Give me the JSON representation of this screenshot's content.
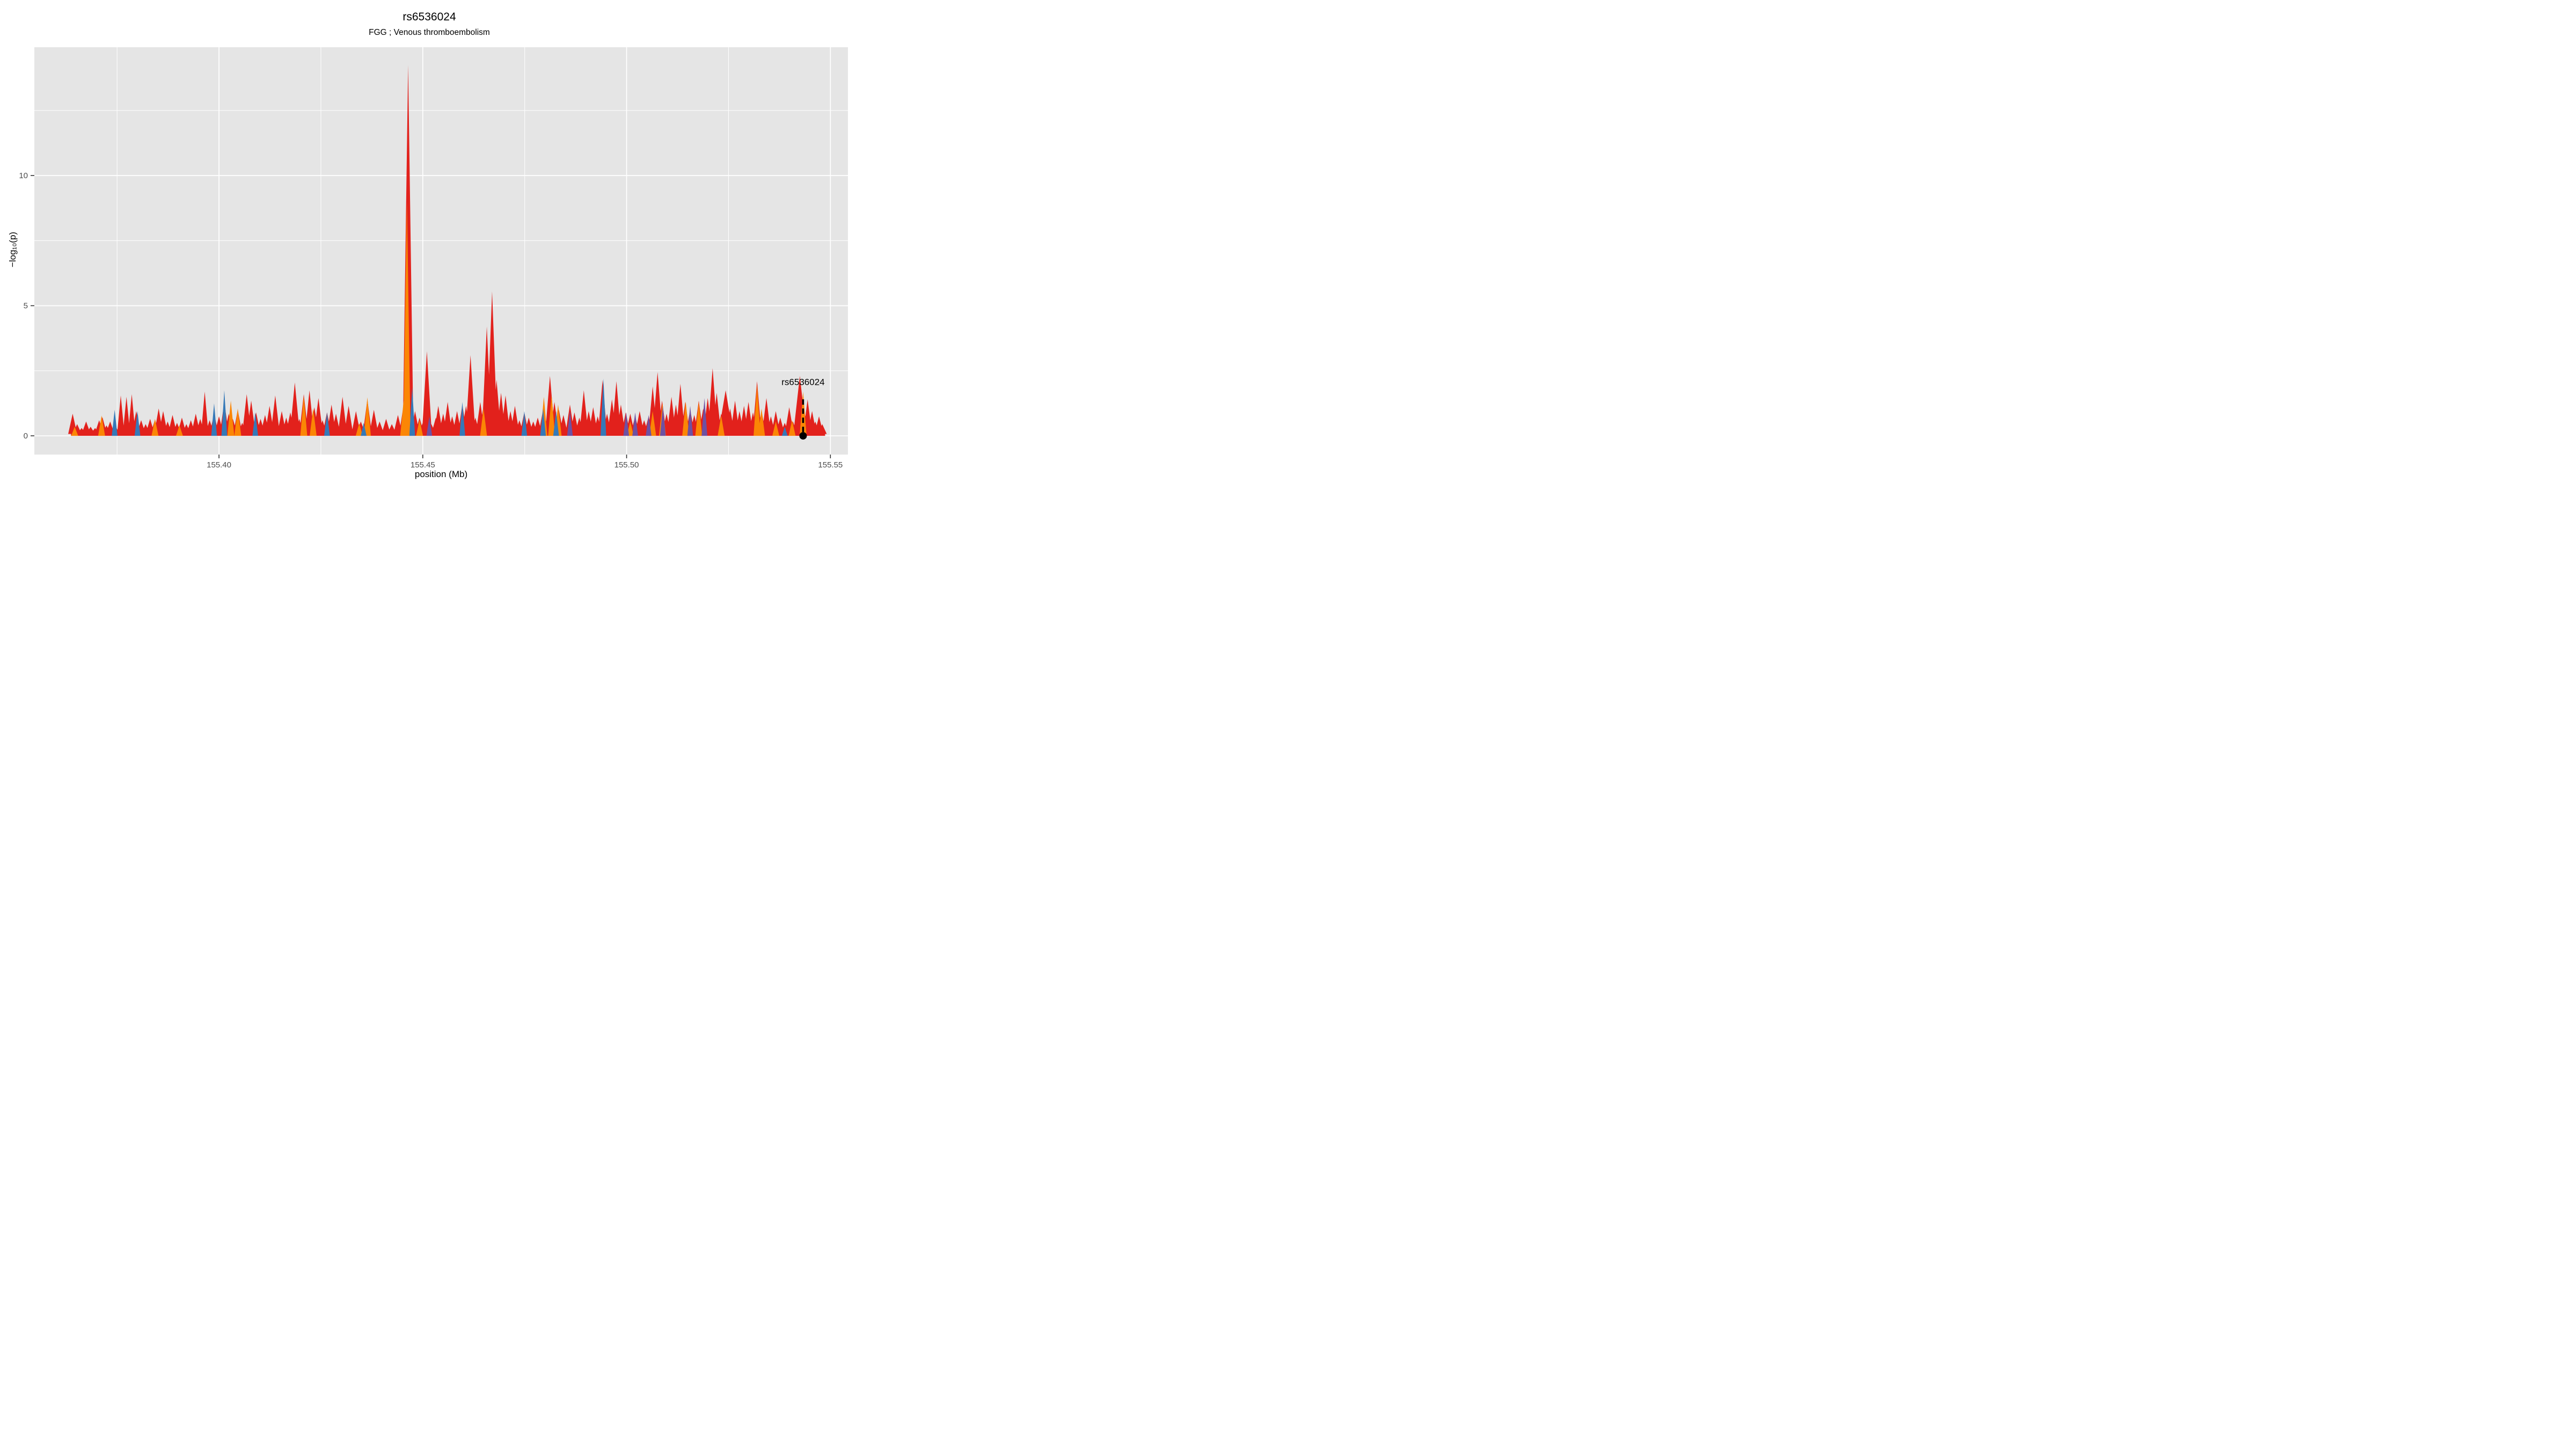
{
  "chart_data": {
    "type": "area",
    "title": "rs6536024",
    "subtitle": "FGG ; Venous thromboembolism",
    "xlabel": "position (Mb)",
    "ylabel": "-log10(p)",
    "ylabel_display": "−log₁₀(p)",
    "xlim": [
      155.3547,
      155.5543
    ],
    "ylim": [
      -0.72,
      14.93
    ],
    "x_ticks": [
      {
        "value": 155.4,
        "label": "155.40"
      },
      {
        "value": 155.45,
        "label": "155.45"
      },
      {
        "value": 155.5,
        "label": "155.50"
      },
      {
        "value": 155.55,
        "label": "155.55"
      }
    ],
    "x_minor": [
      155.375,
      155.425,
      155.475,
      155.525
    ],
    "y_ticks": [
      {
        "value": 0,
        "label": "0"
      },
      {
        "value": 5,
        "label": "5"
      },
      {
        "value": 10,
        "label": "10"
      }
    ],
    "y_minor": [
      2.5,
      7.5,
      12.5
    ],
    "style": {
      "panel_color": "#E5E5E5",
      "grid_color": "#FFFFFF",
      "tick_text_color": "#4D4D4D",
      "tick_mark_color": "#333333",
      "annotation_color": "#000000"
    },
    "legend": "none",
    "series": [
      {
        "name": "red-trace",
        "color": "#E2211C",
        "baseline": 0.07,
        "range": [
          155.3637,
          155.5487
        ],
        "default_halfwidth": 0.0011,
        "spikes": [
          [
            155.3641,
            0.85
          ],
          [
            155.3652,
            0.45
          ],
          [
            155.3663,
            0.3
          ],
          [
            155.3674,
            0.55
          ],
          [
            155.3685,
            0.35
          ],
          [
            155.3696,
            0.3
          ],
          [
            155.3706,
            0.6
          ],
          [
            155.3714,
            0.72
          ],
          [
            155.3724,
            0.4
          ],
          [
            155.3733,
            0.55
          ],
          [
            155.3745,
            0.42
          ],
          [
            155.3759,
            1.55,
            0.0009
          ],
          [
            155.3773,
            1.5,
            0.0009
          ],
          [
            155.3786,
            1.6,
            0.0009
          ],
          [
            155.3797,
            0.95
          ],
          [
            155.3809,
            0.6
          ],
          [
            155.382,
            0.45
          ],
          [
            155.3831,
            0.65
          ],
          [
            155.3843,
            0.62
          ],
          [
            155.3852,
            1.05
          ],
          [
            155.3863,
            0.95
          ],
          [
            155.3874,
            0.55
          ],
          [
            155.3886,
            0.8
          ],
          [
            155.3897,
            0.5
          ],
          [
            155.3909,
            0.7
          ],
          [
            155.392,
            0.45
          ],
          [
            155.3931,
            0.6
          ],
          [
            155.3943,
            0.85
          ],
          [
            155.3954,
            0.65
          ],
          [
            155.3965,
            1.7,
            0.0009
          ],
          [
            155.3977,
            0.6
          ],
          [
            155.3988,
            0.85
          ],
          [
            155.4,
            0.75
          ],
          [
            155.4013,
            1.3
          ],
          [
            155.4024,
            0.85
          ],
          [
            155.4034,
            0.65
          ],
          [
            155.4046,
            1.0
          ],
          [
            155.4057,
            0.5
          ],
          [
            155.4068,
            1.6
          ],
          [
            155.4079,
            1.35
          ],
          [
            155.4091,
            0.9
          ],
          [
            155.4102,
            0.65
          ],
          [
            155.4113,
            0.8
          ],
          [
            155.4124,
            1.15
          ],
          [
            155.4138,
            1.55
          ],
          [
            155.4154,
            0.95
          ],
          [
            155.4165,
            0.7
          ],
          [
            155.4175,
            0.9
          ],
          [
            155.4186,
            2.05,
            0.0012
          ],
          [
            155.4197,
            0.65
          ],
          [
            155.4208,
            1.6
          ],
          [
            155.4222,
            1.75
          ],
          [
            155.4234,
            1.1
          ],
          [
            155.4244,
            1.45
          ],
          [
            155.4254,
            0.6
          ],
          [
            155.4265,
            0.9
          ],
          [
            155.4276,
            1.2
          ],
          [
            155.4287,
            0.85
          ],
          [
            155.4303,
            1.5
          ],
          [
            155.4318,
            1.15
          ],
          [
            155.4336,
            0.95
          ],
          [
            155.4348,
            0.55
          ],
          [
            155.4364,
            1.4
          ],
          [
            155.438,
            1.0
          ],
          [
            155.4394,
            0.55
          ],
          [
            155.441,
            0.65
          ],
          [
            155.4424,
            0.45
          ],
          [
            155.4439,
            0.8
          ],
          [
            155.4453,
            1.2
          ],
          [
            155.4464,
            14.25,
            0.0013
          ],
          [
            155.4481,
            0.95
          ],
          [
            155.4492,
            0.7
          ],
          [
            155.4501,
            0.55
          ],
          [
            155.451,
            3.25,
            0.0012
          ],
          [
            155.4521,
            0.45
          ],
          [
            155.4532,
            0.7
          ],
          [
            155.4538,
            1.15
          ],
          [
            155.455,
            0.85
          ],
          [
            155.4561,
            1.3
          ],
          [
            155.4572,
            0.75
          ],
          [
            155.4584,
            0.95
          ],
          [
            155.4597,
            1.2
          ],
          [
            155.4606,
            1.15
          ],
          [
            155.4617,
            3.1,
            0.0012
          ],
          [
            155.4629,
            0.7
          ],
          [
            155.4641,
            1.3
          ],
          [
            155.4649,
            1.15
          ],
          [
            155.4657,
            4.2,
            0.0012
          ],
          [
            155.467,
            5.55,
            0.0013
          ],
          [
            155.4681,
            2.15
          ],
          [
            155.4692,
            1.65
          ],
          [
            155.4703,
            1.55
          ],
          [
            155.4715,
            0.95
          ],
          [
            155.4726,
            1.15
          ],
          [
            155.4737,
            0.6
          ],
          [
            155.4749,
            0.9
          ],
          [
            155.476,
            0.7
          ],
          [
            155.4771,
            0.55
          ],
          [
            155.4782,
            0.7
          ],
          [
            155.4795,
            1.0
          ],
          [
            155.4806,
            0.8
          ],
          [
            155.4812,
            2.3,
            0.0012
          ],
          [
            155.4823,
            1.3
          ],
          [
            155.4834,
            1.0
          ],
          [
            155.4845,
            0.8
          ],
          [
            155.4861,
            1.2
          ],
          [
            155.4872,
            0.9
          ],
          [
            155.4884,
            0.7
          ],
          [
            155.4895,
            1.75
          ],
          [
            155.4907,
            0.95
          ],
          [
            155.4918,
            1.1
          ],
          [
            155.4929,
            0.75
          ],
          [
            155.4941,
            2.15
          ],
          [
            155.4952,
            0.85
          ],
          [
            155.4964,
            1.4
          ],
          [
            155.4975,
            2.1
          ],
          [
            155.4986,
            1.2
          ],
          [
            155.4998,
            0.9
          ],
          [
            155.5009,
            0.85
          ],
          [
            155.5021,
            0.75
          ],
          [
            155.5032,
            0.95
          ],
          [
            155.5043,
            0.6
          ],
          [
            155.5054,
            0.75
          ],
          [
            155.5064,
            1.9
          ],
          [
            155.5076,
            2.45,
            0.0012
          ],
          [
            155.5087,
            1.35
          ],
          [
            155.5098,
            0.85
          ],
          [
            155.511,
            1.5
          ],
          [
            155.5121,
            1.2
          ],
          [
            155.5132,
            2.0
          ],
          [
            155.5144,
            1.3
          ],
          [
            155.5156,
            1.0
          ],
          [
            155.5166,
            0.8
          ],
          [
            155.5177,
            1.35
          ],
          [
            155.5188,
            1.05
          ],
          [
            155.5199,
            1.45
          ],
          [
            155.5211,
            2.6,
            0.0012
          ],
          [
            155.5221,
            1.65
          ],
          [
            155.5232,
            0.85
          ],
          [
            155.5243,
            1.75,
            0.0018
          ],
          [
            155.5254,
            1.05
          ],
          [
            155.5266,
            1.35
          ],
          [
            155.5277,
            0.95
          ],
          [
            155.5288,
            1.15
          ],
          [
            155.5299,
            1.3
          ],
          [
            155.531,
            0.9
          ],
          [
            155.532,
            2.1
          ],
          [
            155.5331,
            0.95
          ],
          [
            155.5343,
            1.45
          ],
          [
            155.5354,
            0.75
          ],
          [
            155.5366,
            0.95
          ],
          [
            155.5377,
            0.7
          ],
          [
            155.5388,
            0.5
          ],
          [
            155.5399,
            1.1
          ],
          [
            155.5408,
            0.55
          ],
          [
            155.5416,
            0.6
          ],
          [
            155.5425,
            2.3,
            0.0016
          ],
          [
            155.5437,
            0.85
          ],
          [
            155.5444,
            1.4
          ],
          [
            155.5455,
            0.95
          ],
          [
            155.5463,
            0.55
          ],
          [
            155.5472,
            0.75
          ],
          [
            155.548,
            0.45
          ]
        ]
      },
      {
        "name": "orange-trace",
        "color": "#FB8605",
        "default_halfwidth": 0.00085,
        "spikes": [
          [
            155.3646,
            0.35
          ],
          [
            155.3712,
            0.78
          ],
          [
            155.3843,
            0.65
          ],
          [
            155.3903,
            0.4
          ],
          [
            155.4029,
            1.35
          ],
          [
            155.4046,
            1.05
          ],
          [
            155.4208,
            1.52
          ],
          [
            155.4231,
            1.05
          ],
          [
            155.4344,
            0.48
          ],
          [
            155.4364,
            1.48
          ],
          [
            155.4453,
            1.35
          ],
          [
            155.4461,
            9.0,
            0.0009
          ],
          [
            155.4492,
            0.62
          ],
          [
            155.4649,
            1.05
          ],
          [
            155.4797,
            1.5
          ],
          [
            155.4816,
            1.55
          ],
          [
            155.4832,
            1.2
          ],
          [
            155.5009,
            0.55
          ],
          [
            155.5064,
            0.95
          ],
          [
            155.5088,
            1.25
          ],
          [
            155.5145,
            1.32
          ],
          [
            155.5177,
            1.3
          ],
          [
            155.5232,
            0.78
          ],
          [
            155.532,
            1.95
          ],
          [
            155.5331,
            1.05
          ],
          [
            155.5366,
            0.55
          ],
          [
            155.5406,
            0.6
          ],
          [
            155.5433,
            1.7
          ]
        ]
      },
      {
        "name": "blue-trace",
        "color": "#3579B8",
        "default_halfwidth": 0.0007,
        "spikes": [
          [
            155.3744,
            1.0
          ],
          [
            155.38,
            0.95
          ],
          [
            155.3988,
            1.25
          ],
          [
            155.4013,
            1.75
          ],
          [
            155.4089,
            0.9
          ],
          [
            155.4265,
            0.9
          ],
          [
            155.4355,
            0.5
          ],
          [
            155.4474,
            1.85
          ],
          [
            155.4597,
            1.3
          ],
          [
            155.4749,
            0.95
          ],
          [
            155.4795,
            1.05
          ],
          [
            155.4827,
            0.95
          ],
          [
            155.4943,
            2.2
          ],
          [
            155.5388,
            0.35
          ]
        ]
      },
      {
        "name": "purple-trace",
        "color": "#6E51A2",
        "default_halfwidth": 0.0007,
        "spikes": [
          [
            155.4516,
            0.75
          ],
          [
            155.4861,
            0.95
          ],
          [
            155.4999,
            0.9
          ],
          [
            155.5021,
            0.9
          ],
          [
            155.5054,
            0.8
          ],
          [
            155.5089,
            1.15
          ],
          [
            155.5156,
            1.15
          ],
          [
            155.5191,
            1.45
          ]
        ]
      }
    ],
    "annotation": {
      "label": "rs6536024",
      "x": 155.5433,
      "line_top_value": 1.4,
      "dot_value": 0,
      "label_value": 1.95,
      "line_style": "dashed",
      "color": "#000000"
    }
  }
}
